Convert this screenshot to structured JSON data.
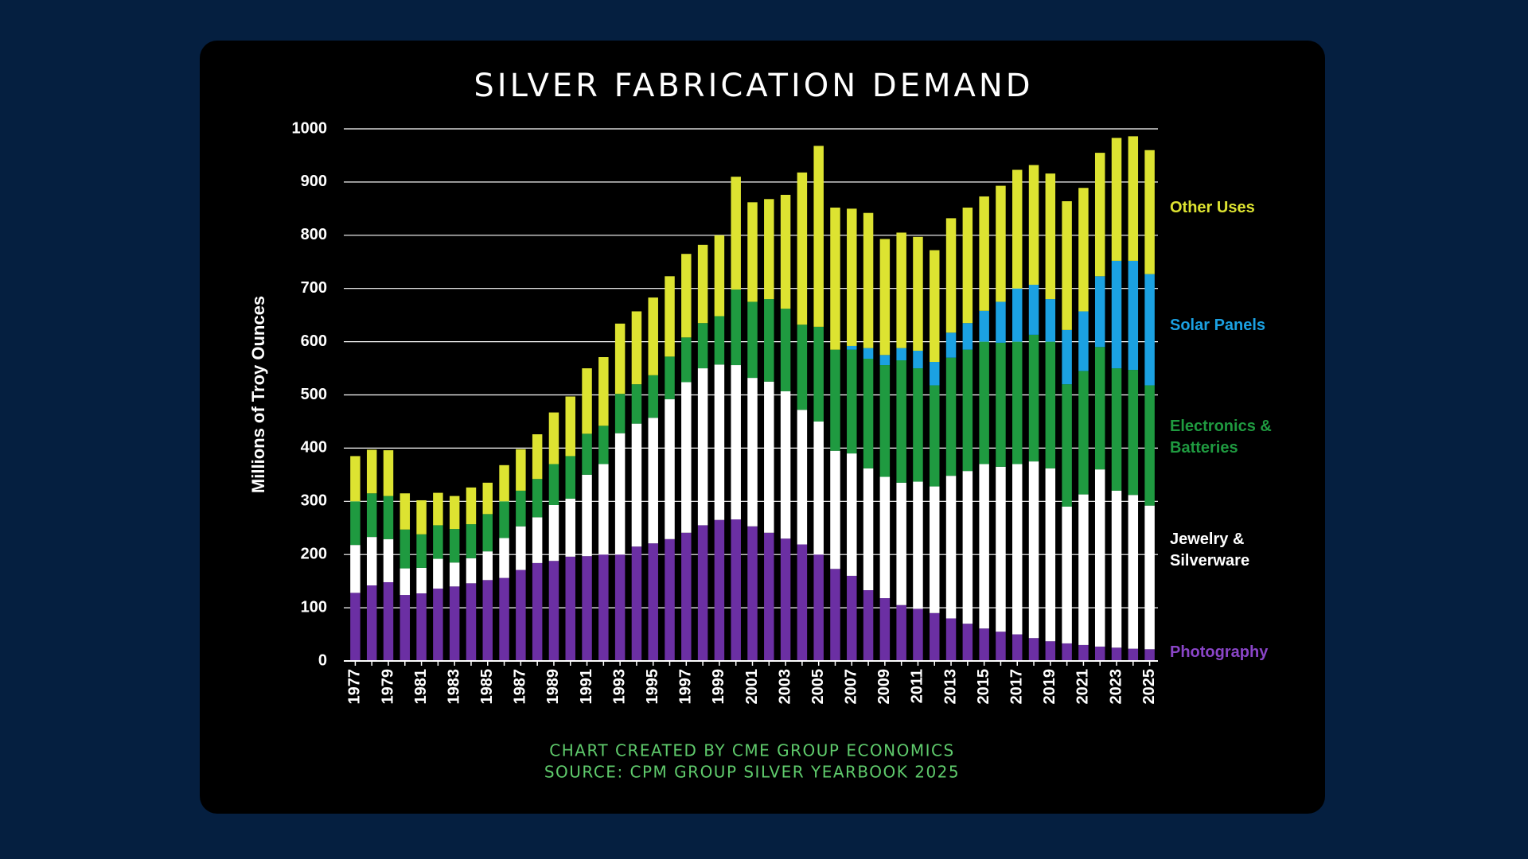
{
  "chart_data": {
    "type": "stacked-bar",
    "title": "SILVER FABRICATION DEMAND",
    "y_label": "Millions of Troy Ounces",
    "credit": "CHART CREATED BY CME GROUP ECONOMICS",
    "source": "SOURCE: CPM GROUP SILVER YEARBOOK 2025",
    "categories": [
      "1977",
      null,
      "1979",
      null,
      "1981",
      null,
      "1983",
      null,
      "1985",
      null,
      "1987",
      null,
      "1989",
      null,
      "1991",
      null,
      "1993",
      null,
      "1995",
      null,
      "1997",
      null,
      "1999",
      null,
      "2001",
      null,
      "2003",
      null,
      "2005",
      null,
      "2007",
      null,
      "2009",
      null,
      "2011",
      null,
      "2013",
      null,
      "2015",
      null,
      "2017",
      null,
      "2019",
      null,
      "2021",
      null,
      "2023",
      null,
      "2025"
    ],
    "series": [
      {
        "name": "Photography",
        "color": "#6b2fa3",
        "values": [
          128,
          142,
          148,
          124,
          127,
          136,
          140,
          146,
          152,
          156,
          171,
          184,
          188,
          196,
          197,
          200,
          200,
          215,
          221,
          229,
          241,
          255,
          265,
          266,
          253,
          241,
          230,
          219,
          200,
          173,
          160,
          133,
          118,
          105,
          98,
          90,
          80,
          70,
          61,
          55,
          50,
          43,
          37,
          33,
          30,
          27,
          25,
          23,
          22
        ]
      },
      {
        "name": "Jewelry & Silverware",
        "color": "#ffffff",
        "values": [
          90,
          91,
          81,
          50,
          48,
          56,
          45,
          47,
          54,
          75,
          82,
          86,
          105,
          109,
          153,
          170,
          228,
          231,
          236,
          263,
          283,
          295,
          292,
          290,
          279,
          284,
          277,
          253,
          250,
          222,
          230,
          229,
          228,
          230,
          239,
          238,
          268,
          287,
          309,
          310,
          320,
          332,
          325,
          257,
          283,
          333,
          295,
          289,
          270
        ]
      },
      {
        "name": "Electronics & Batteries",
        "color": "#1f9a40",
        "values": [
          82,
          82,
          81,
          73,
          63,
          63,
          63,
          64,
          70,
          69,
          67,
          72,
          77,
          80,
          77,
          72,
          74,
          74,
          80,
          80,
          84,
          85,
          91,
          142,
          143,
          155,
          155,
          160,
          178,
          190,
          195,
          206,
          210,
          230,
          213,
          190,
          222,
          228,
          230,
          233,
          230,
          238,
          238,
          230,
          232,
          230,
          230,
          235,
          226
        ]
      },
      {
        "name": "Solar Panels",
        "color": "#1ba1e2",
        "values": [
          0,
          0,
          0,
          0,
          0,
          0,
          0,
          0,
          0,
          0,
          0,
          0,
          0,
          0,
          0,
          0,
          0,
          0,
          0,
          0,
          0,
          0,
          0,
          0,
          0,
          0,
          0,
          0,
          0,
          0,
          7,
          20,
          19,
          23,
          33,
          44,
          47,
          50,
          58,
          77,
          100,
          94,
          80,
          102,
          112,
          133,
          202,
          205,
          209
        ]
      },
      {
        "name": "Other Uses",
        "color": "#dde331",
        "values": [
          85,
          82,
          86,
          68,
          64,
          61,
          62,
          69,
          59,
          68,
          78,
          84,
          97,
          112,
          123,
          129,
          132,
          137,
          146,
          151,
          157,
          147,
          152,
          212,
          187,
          188,
          214,
          286,
          340,
          267,
          258,
          254,
          218,
          217,
          214,
          210,
          215,
          217,
          215,
          218,
          223,
          225,
          236,
          242,
          232,
          232,
          231,
          234,
          233
        ]
      }
    ],
    "ylim": [
      0,
      1000
    ],
    "yticks": [
      0,
      100,
      200,
      300,
      400,
      500,
      600,
      700,
      800,
      900,
      1000
    ],
    "grid": true
  }
}
